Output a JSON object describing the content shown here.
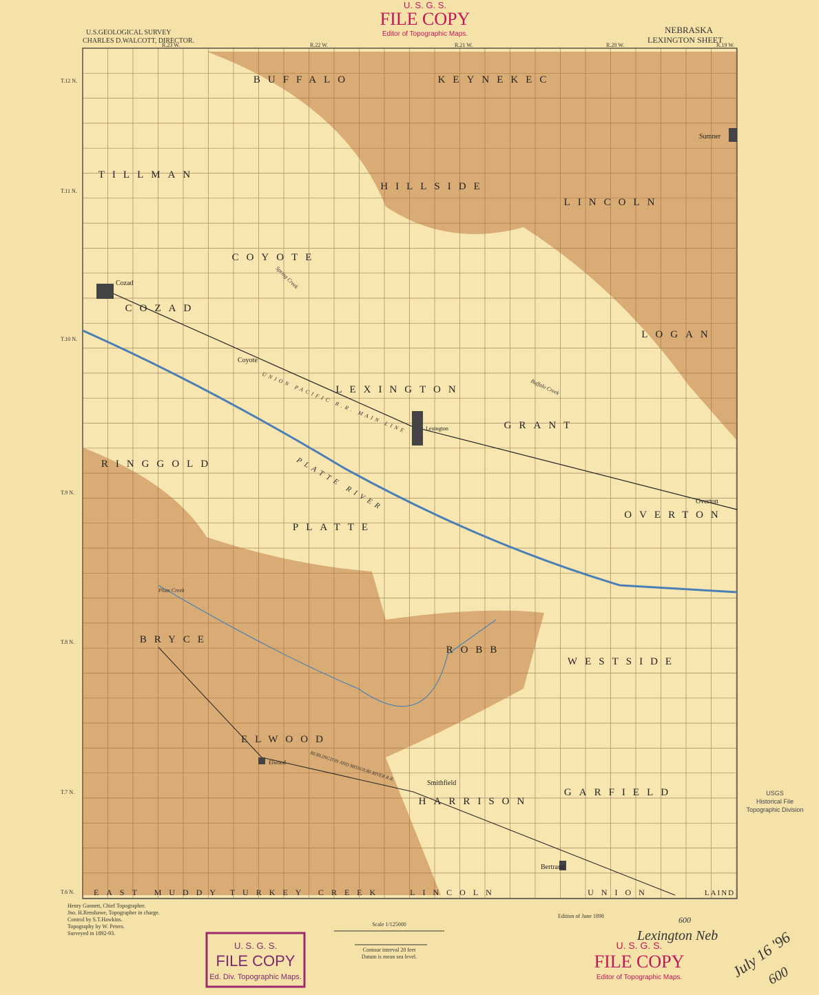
{
  "header": {
    "agency": "U.S.GEOLOGICAL SURVEY",
    "director": "CHARLES D.WALCOTT, DIRECTOR.",
    "state": "NEBRASKA",
    "sheet": "LEXINGTON SHEET"
  },
  "top_stamp": {
    "org": "U. S. G. S.",
    "title": "FILE COPY",
    "subtitle": "Editor of Topographic Maps."
  },
  "ranges": [
    "R.23 W.",
    "R.22 W.",
    "R.21 W.",
    "R.20 W.",
    "R.19 W."
  ],
  "townships_rows": [
    "T.12 N.",
    "T.11 N.",
    "T.10 N.",
    "T.9 N.",
    "T.8 N.",
    "T.7 N.",
    "T.6 N."
  ],
  "precincts": [
    "BUFFALO",
    "KEYNEKEC",
    "TILLMAN",
    "HILLSIDE",
    "LINCOLN",
    "COYOTE",
    "COZAD",
    "LOGAN",
    "LEXINGTON",
    "GRANT",
    "RINGGOLD",
    "OVERTON",
    "PLATTE",
    "BRYCE",
    "ROBB",
    "WESTSIDE",
    "ELWOOD",
    "HARRISON",
    "GARFIELD",
    "EAST MUDDY",
    "TURKEY CREEK",
    "LINCOLN",
    "UNION",
    "LAIND"
  ],
  "towns": [
    "Cozad",
    "Coyote",
    "Lexington",
    "Overton",
    "Sumner",
    "Elwood",
    "Smithfield",
    "Bertrand"
  ],
  "features": {
    "river": "PLATTE RIVER",
    "railroad": "UNION PACIFIC R.R. MAIN LINE",
    "creek1": "Spring Creek",
    "creek2": "Buffalo Creek",
    "creek3": "Plum Creek",
    "rr2": "BURLINGTON AND MISSOURI RIVER R.R."
  },
  "footer": {
    "credits": [
      "Henry Gannett, Chief Topographer.",
      "Jno. H.Renshawe, Topographer in charge.",
      "Control by S.T.Hawkins.",
      "Topography by W. Peters.",
      "Surveyed in 1892-93."
    ],
    "scale": "Scale 1/125000",
    "contour": "Contour interval 20 feet",
    "datum": "Datum is mean sea level.",
    "edition": "Edition of June 1898"
  },
  "bottom_stamp": {
    "org": "U. S. G. S.",
    "title": "FILE COPY",
    "subtitle": "Ed. Div. Topographic Maps."
  },
  "right_stamp": {
    "org": "U. S. G. S.",
    "title": "FILE COPY",
    "subtitle": "Editor of Topographic Maps."
  },
  "archive_stamp": [
    "USGS",
    "Historical File",
    "Topographic Division"
  ],
  "handwriting": {
    "place": "Lexington Neb",
    "date": "July 16 '96",
    "number_top": "600",
    "number_bottom": "600"
  }
}
